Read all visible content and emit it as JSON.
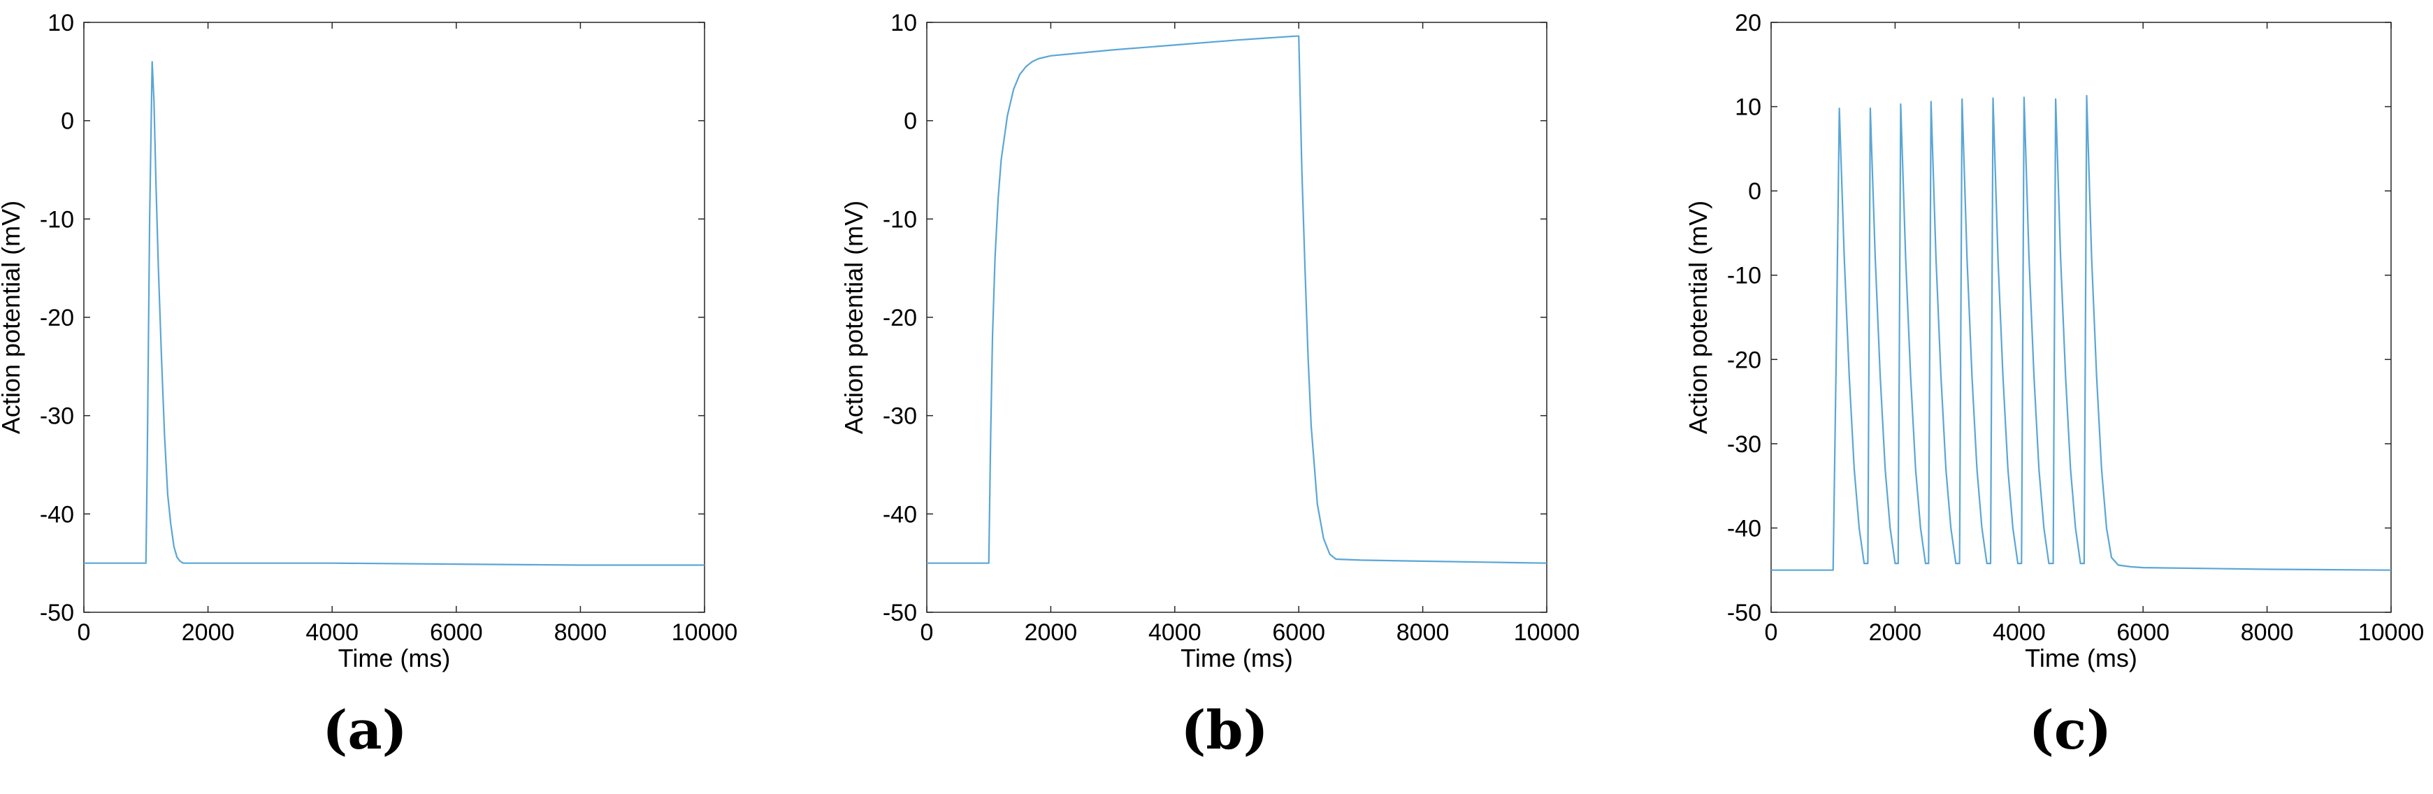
{
  "chart_data": [
    {
      "type": "line",
      "panel_label": "(a)",
      "xlabel": "Time (ms)",
      "ylabel": "Action potential (mV)",
      "xlim": [
        0,
        10000
      ],
      "ylim": [
        -50,
        10
      ],
      "xticks": [
        0,
        2000,
        4000,
        6000,
        8000,
        10000
      ],
      "yticks": [
        -50,
        -40,
        -30,
        -20,
        -10,
        0,
        10
      ],
      "grid": false,
      "line_color": "#5AA6D6",
      "series": [
        {
          "x": [
            0,
            1000,
            1020,
            1060,
            1100,
            1130,
            1160,
            1200,
            1250,
            1300,
            1350,
            1400,
            1450,
            1500,
            1550,
            1600,
            1700,
            2000,
            4000,
            6000,
            8000,
            10000
          ],
          "y": [
            -45,
            -45,
            -35,
            -10,
            6,
            2,
            -6,
            -15,
            -24,
            -32,
            -38,
            -41,
            -43.3,
            -44.4,
            -44.8,
            -45,
            -45,
            -45,
            -45,
            -45.1,
            -45.2,
            -45.2
          ]
        }
      ]
    },
    {
      "type": "line",
      "panel_label": "(b)",
      "xlabel": "Time (ms)",
      "ylabel": "Action potential (mV)",
      "xlim": [
        0,
        10000
      ],
      "ylim": [
        -50,
        10
      ],
      "xticks": [
        0,
        2000,
        4000,
        6000,
        8000,
        10000
      ],
      "yticks": [
        -50,
        -40,
        -30,
        -20,
        -10,
        0,
        10
      ],
      "grid": false,
      "line_color": "#5AA6D6",
      "series": [
        {
          "x": [
            0,
            1000,
            1030,
            1060,
            1100,
            1150,
            1200,
            1300,
            1400,
            1500,
            1600,
            1700,
            1800,
            2000,
            3000,
            4000,
            5000,
            5950,
            6000,
            6050,
            6100,
            6150,
            6200,
            6300,
            6400,
            6500,
            6600,
            7000,
            8000,
            9000,
            10000
          ],
          "y": [
            -45,
            -45,
            -32,
            -22,
            -14,
            -8,
            -4,
            0.5,
            3.2,
            4.7,
            5.5,
            6.0,
            6.3,
            6.6,
            7.2,
            7.7,
            8.2,
            8.6,
            8.6,
            -5,
            -15,
            -24,
            -31,
            -39,
            -42.5,
            -44.1,
            -44.6,
            -44.7,
            -44.8,
            -44.9,
            -45
          ]
        }
      ]
    },
    {
      "type": "line",
      "panel_label": "(c)",
      "xlabel": "Time (ms)",
      "ylabel": "Action potential (mV)",
      "xlim": [
        0,
        10000
      ],
      "ylim": [
        -50,
        20
      ],
      "xticks": [
        0,
        2000,
        4000,
        6000,
        8000,
        10000
      ],
      "yticks": [
        -50,
        -40,
        -30,
        -20,
        -10,
        0,
        10,
        20
      ],
      "grid": false,
      "line_color": "#5AA6D6",
      "spike_times": [
        1100,
        1600,
        2090,
        2580,
        3080,
        3580,
        4080,
        4590,
        5090
      ],
      "spike_peaks": [
        9.8,
        9.8,
        10.3,
        10.6,
        10.9,
        11.0,
        11.1,
        10.9,
        11.3
      ],
      "series": [
        {
          "x": [
            0,
            1000,
            1050,
            1100,
            1180,
            1260,
            1340,
            1420,
            1500,
            1560,
            1600,
            1680,
            1760,
            1840,
            1920,
            2000,
            2050,
            2090,
            2170,
            2250,
            2330,
            2410,
            2490,
            2540,
            2580,
            2660,
            2740,
            2820,
            2900,
            2980,
            3040,
            3080,
            3160,
            3240,
            3320,
            3400,
            3480,
            3540,
            3580,
            3660,
            3740,
            3820,
            3900,
            3980,
            4040,
            4080,
            4160,
            4240,
            4320,
            4400,
            4480,
            4550,
            4590,
            4670,
            4750,
            4830,
            4910,
            4990,
            5050,
            5090,
            5170,
            5250,
            5330,
            5410,
            5490,
            5600,
            5800,
            6000,
            8000,
            10000
          ],
          "y": [
            -45,
            -45,
            -20,
            9.8,
            -8,
            -22,
            -33,
            -40,
            -44.2,
            -44.2,
            9.8,
            -8,
            -22,
            -33,
            -40,
            -44.2,
            -44.2,
            10.3,
            -8,
            -22,
            -33,
            -40,
            -44.2,
            -44.2,
            10.6,
            -8,
            -22,
            -33,
            -40,
            -44.2,
            -44.2,
            10.9,
            -8,
            -22,
            -33,
            -40,
            -44.2,
            -44.2,
            11.0,
            -8,
            -22,
            -33,
            -40,
            -44.2,
            -44.2,
            11.1,
            -8,
            -22,
            -33,
            -40,
            -44.2,
            -44.2,
            10.9,
            -8,
            -22,
            -33,
            -40,
            -44.2,
            -44.2,
            11.3,
            -8,
            -22,
            -33,
            -40,
            -43.5,
            -44.4,
            -44.6,
            -44.7,
            -44.9,
            -45
          ]
        }
      ]
    }
  ]
}
